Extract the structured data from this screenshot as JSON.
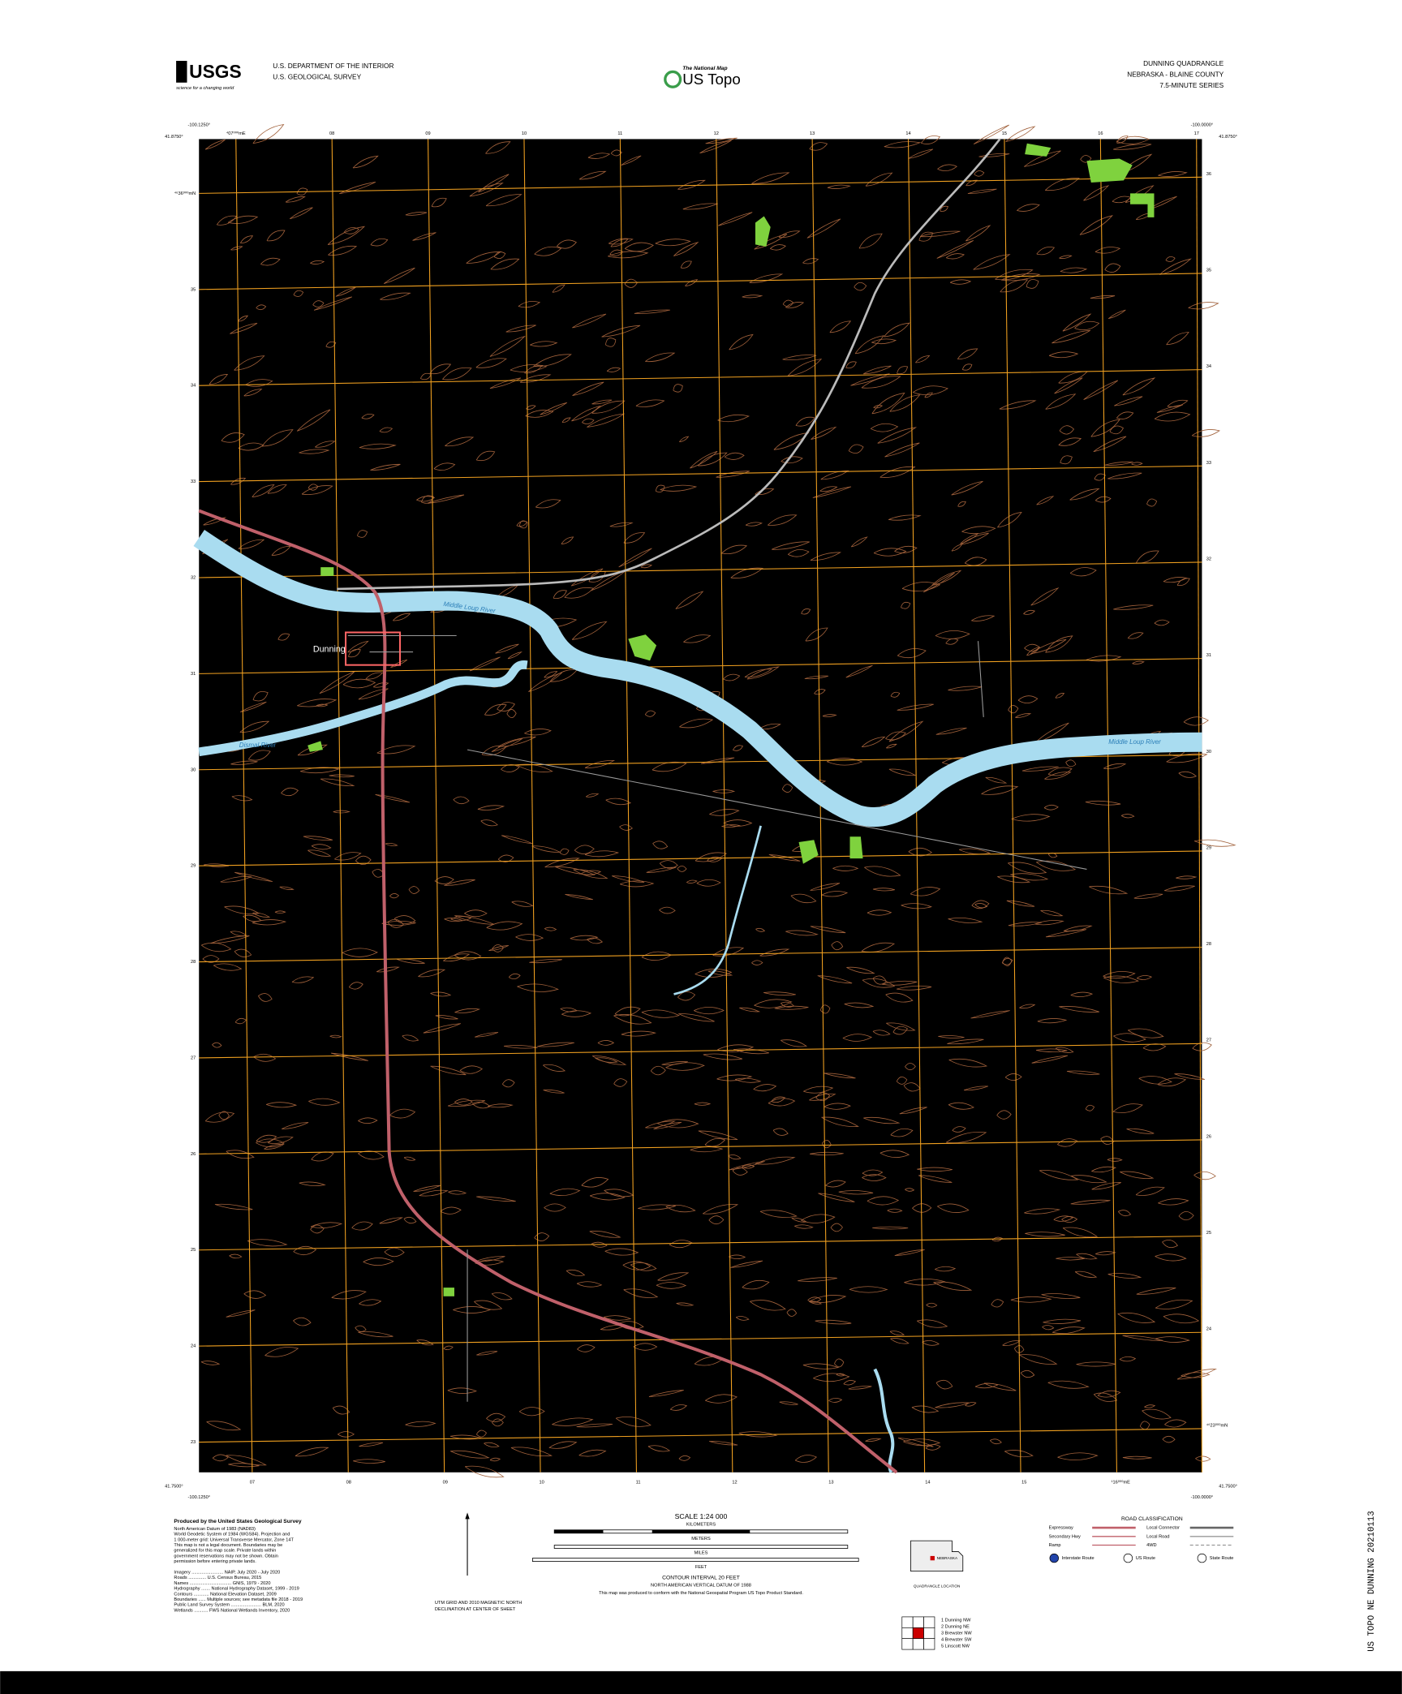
{
  "header": {
    "agency_logo": "USGS",
    "agency_tagline": "science for a changing world",
    "department": "U.S. DEPARTMENT OF THE INTERIOR",
    "survey": "U.S. GEOLOGICAL SURVEY",
    "program": "The National Map",
    "product": "US Topo",
    "quadrangle": "DUNNING QUADRANGLE",
    "state_county": "NEBRASKA - BLAINE COUNTY",
    "series": "7.5-MINUTE SERIES"
  },
  "corners": {
    "top_left_lon": "-100.1250°",
    "top_left_lat": "41.8750°",
    "top_right_lon": "-100.0000°",
    "top_right_lat": "41.8750°",
    "bottom_left_lat": "41.7500°",
    "bottom_left_lon": "-100.1250°",
    "bottom_right_lat": "41.7500°",
    "bottom_right_lon": "-100.0000°"
  },
  "grid": {
    "top": [
      "⁴07⁰⁰⁰mE",
      "08",
      "09",
      "10",
      "11",
      "12",
      "13",
      "14",
      "15",
      "16",
      "17"
    ],
    "bottom": [
      "07",
      "08",
      "09",
      "10",
      "11",
      "12",
      "13",
      "14",
      "15",
      "¹16⁰⁰⁰mE"
    ],
    "left": [
      "⁴⁶36⁰⁰⁰mN",
      "35",
      "34",
      "33",
      "32",
      "31",
      "30",
      "29",
      "28",
      "27",
      "26",
      "25",
      "24",
      "23"
    ],
    "right": [
      "36",
      "35",
      "34",
      "33",
      "32",
      "31",
      "30",
      "29",
      "28",
      "27",
      "26",
      "25",
      "24",
      "⁴⁶23⁰⁰⁰mN"
    ]
  },
  "places": {
    "town": "Dunning",
    "river_north": "Middle Loup River",
    "river_east": "Middle Loup River",
    "river_west": "Dismal River"
  },
  "footer": {
    "producer": "Produced by the United States Geological Survey",
    "notes": [
      "North American Datum of 1983 (NAD83)",
      "World Geodetic System of 1984 (WGS84). Projection and",
      "1 000-meter grid: Universal Transverse Mercator, Zone 14T",
      "This map is not a legal document. Boundaries may be",
      "generalized for this map scale. Private lands within",
      "government reservations may not be shown. Obtain",
      "permission before entering private lands."
    ],
    "sources": [
      "Imagery ......................... NAIP, July 2020 - July 2020",
      "Roads .............. U.S. Census Bureau, 2015",
      "Names ................................. GNIS, 1979 - 2020",
      "Hydrography ....... National Hydrography Dataset, 1999 - 2019",
      "Contours ............ National Elevation Dataset, 2009",
      "Boundaries ...... Multiple sources; see metadata file 2018 - 2019",
      "Public Land Survey System ........................ BLM, 2020",
      "Wetlands ........... FWS National Wetlands Inventory, 2020"
    ],
    "scale": "SCALE 1:24 000",
    "km": "KILOMETERS",
    "meters": "METERS",
    "miles": "MILES",
    "feet": "FEET",
    "contour": "CONTOUR INTERVAL 20 FEET",
    "datum": "NORTH AMERICAN VERTICAL DATUM OF 1988",
    "standard": "This map was produced to conform with the National Geospatial Program US Topo Product Standard.",
    "declination": [
      "UTM GRID AND 2010 MAGNETIC NORTH",
      "DECLINATION AT CENTER OF SHEET"
    ],
    "state_label": "NEBRASKA",
    "location_label": "QUADRANGLE LOCATION",
    "road_title": "ROAD CLASSIFICATION",
    "roads": [
      "Expressway",
      "Secondary Hwy",
      "Ramp",
      "Local Connector",
      "Local Road",
      "4WD"
    ],
    "shields": [
      "Interstate Route",
      "US Route",
      "State Route"
    ],
    "adjoining": [
      "1 Dunning NW",
      "2 Dunning NE",
      "3 Brewster NW",
      "4 Brewster SW",
      "5 Linscott NW"
    ],
    "adjoining_title": "ADJOINING QUADRANGLES",
    "barcode": "US TOPO NE DUNNING 20210113"
  }
}
